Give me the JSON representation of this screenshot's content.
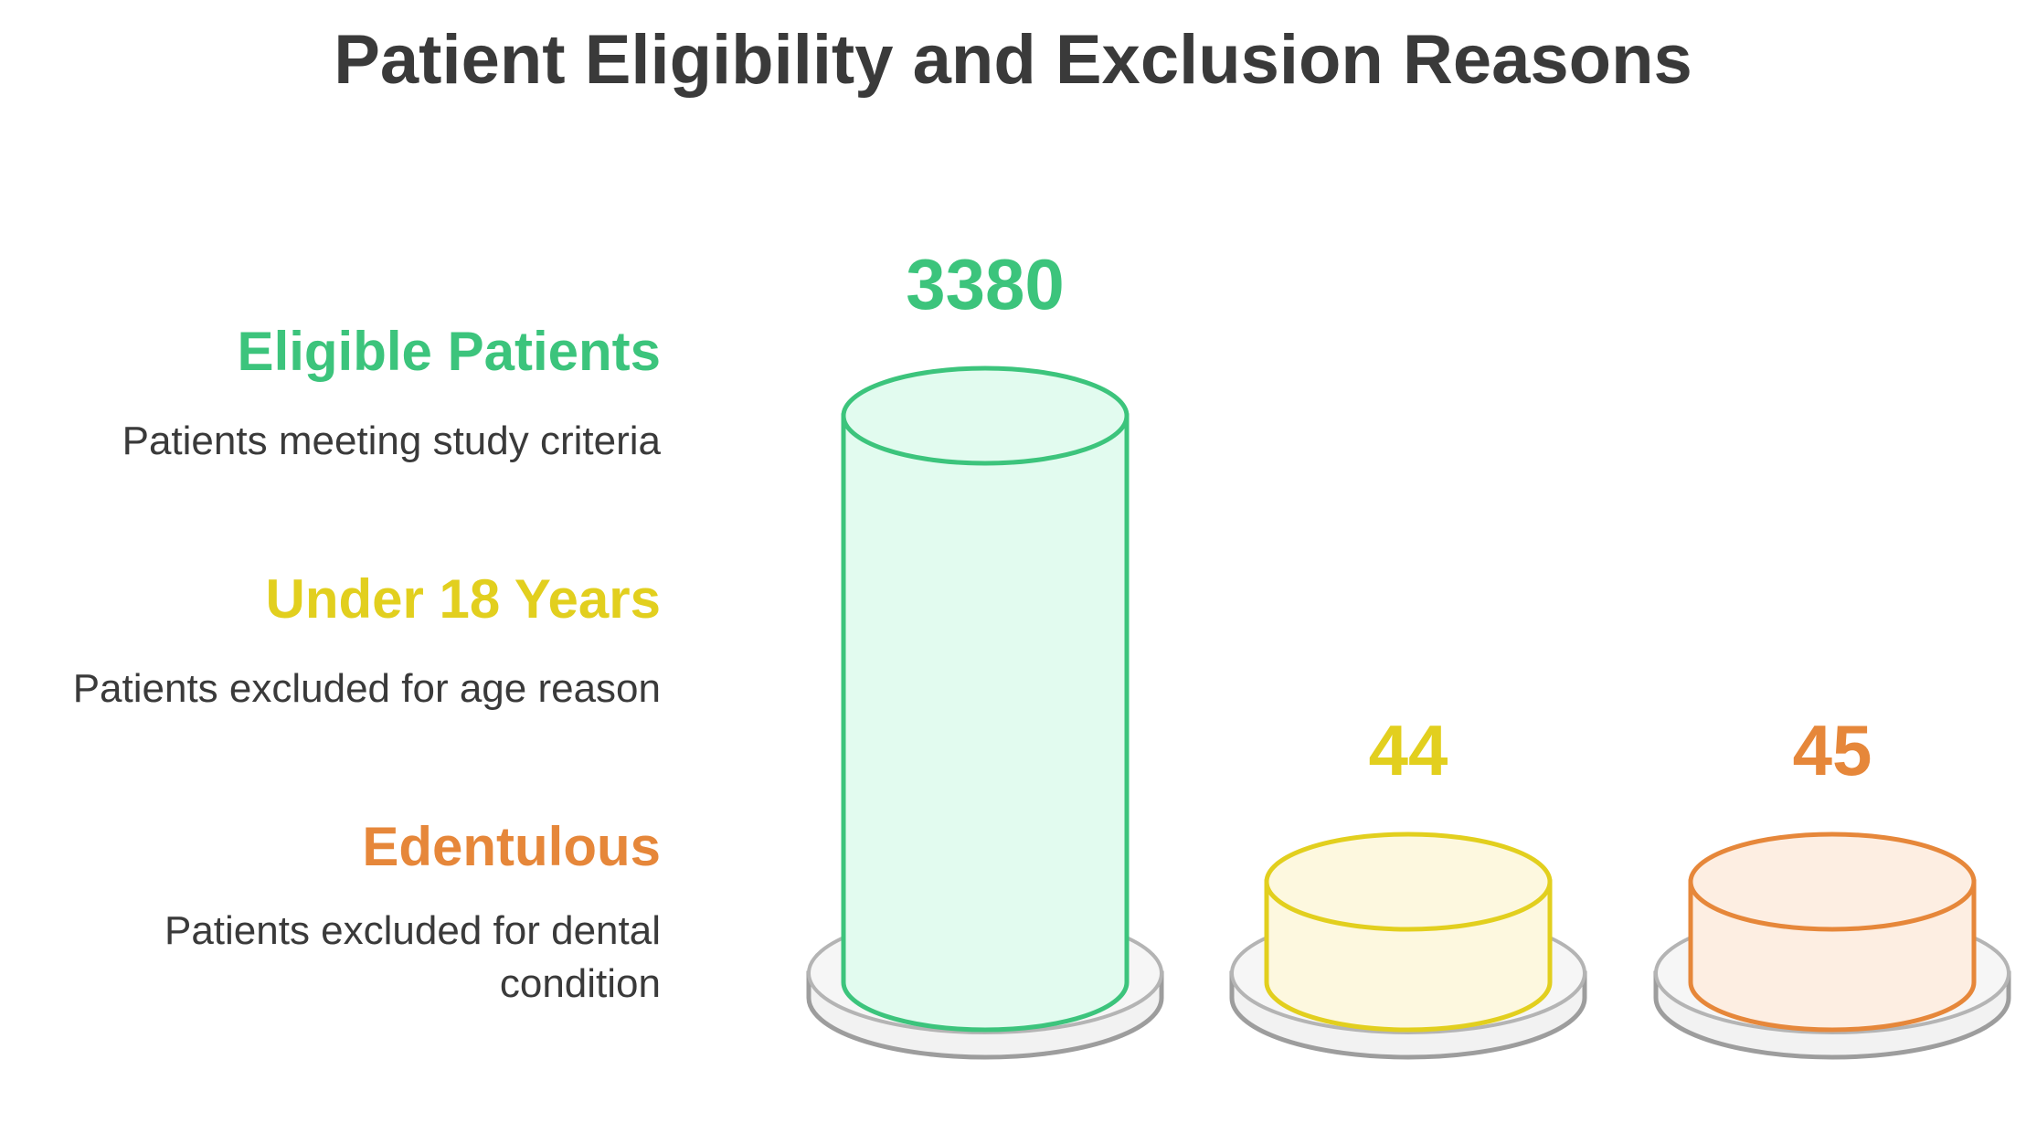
{
  "chart_data": {
    "type": "bar",
    "title": "Patient Eligibility and Exclusion Reasons",
    "categories": [
      "Eligible Patients",
      "Under 18 Years",
      "Edentulous"
    ],
    "values": [
      3380,
      44,
      45
    ],
    "series": [
      {
        "name": "Eligible Patients",
        "value": 3380,
        "description": "Patients meeting study criteria",
        "stroke": "#3cc47c",
        "fill": "#e2fbef",
        "text_color": "#3cc47c"
      },
      {
        "name": "Under 18 Years",
        "value": 44,
        "description": "Patients excluded for age reason",
        "stroke": "#e2cf1e",
        "fill": "#fdf8df",
        "text_color": "#e2cf1e"
      },
      {
        "name": "Edentulous",
        "value": 45,
        "description": "Patients excluded for dental condition",
        "stroke": "#e6873a",
        "fill": "#fdeee2",
        "text_color": "#e6873a"
      }
    ],
    "xlabel": "",
    "ylabel": "",
    "legend_position": "left",
    "grid": false
  }
}
